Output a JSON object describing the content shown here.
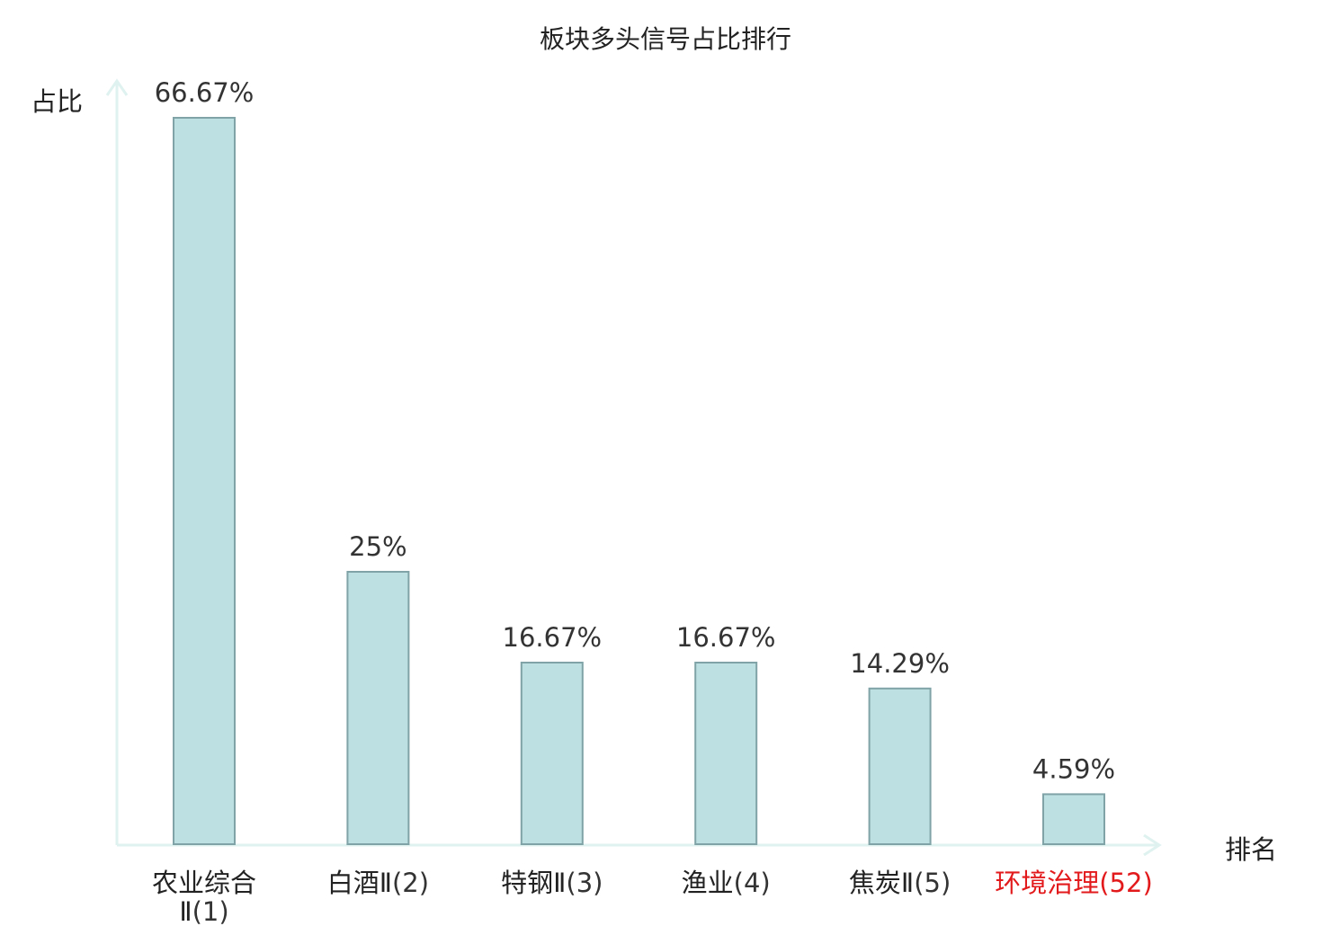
{
  "chart_data": {
    "type": "bar",
    "title": "板块多头信号占比排行",
    "xlabel": "排名",
    "ylabel": "占比",
    "ylim": [
      0,
      70
    ],
    "grid": false,
    "categories": [
      {
        "name": "农业综合Ⅱ",
        "rank": "(1)",
        "value": 66.67,
        "label": "66.67%",
        "highlight": false
      },
      {
        "name": "白酒Ⅱ",
        "rank": "(2)",
        "value": 25,
        "label": "25%",
        "highlight": false
      },
      {
        "name": "特钢Ⅱ",
        "rank": "(3)",
        "value": 16.67,
        "label": "16.67%",
        "highlight": false
      },
      {
        "name": "渔业",
        "rank": "(4)",
        "value": 16.67,
        "label": "16.67%",
        "highlight": false
      },
      {
        "name": "焦炭Ⅱ",
        "rank": "(5)",
        "value": 14.29,
        "label": "14.29%",
        "highlight": false
      },
      {
        "name": "环境治理",
        "rank": "(52)",
        "value": 4.59,
        "label": "4.59%",
        "highlight": true
      }
    ],
    "colors": {
      "bar_fill": "#bde0e3",
      "bar_stroke": "#7fa3a6",
      "axis": "#dff2ef",
      "highlight_text": "#e31a1c"
    }
  }
}
